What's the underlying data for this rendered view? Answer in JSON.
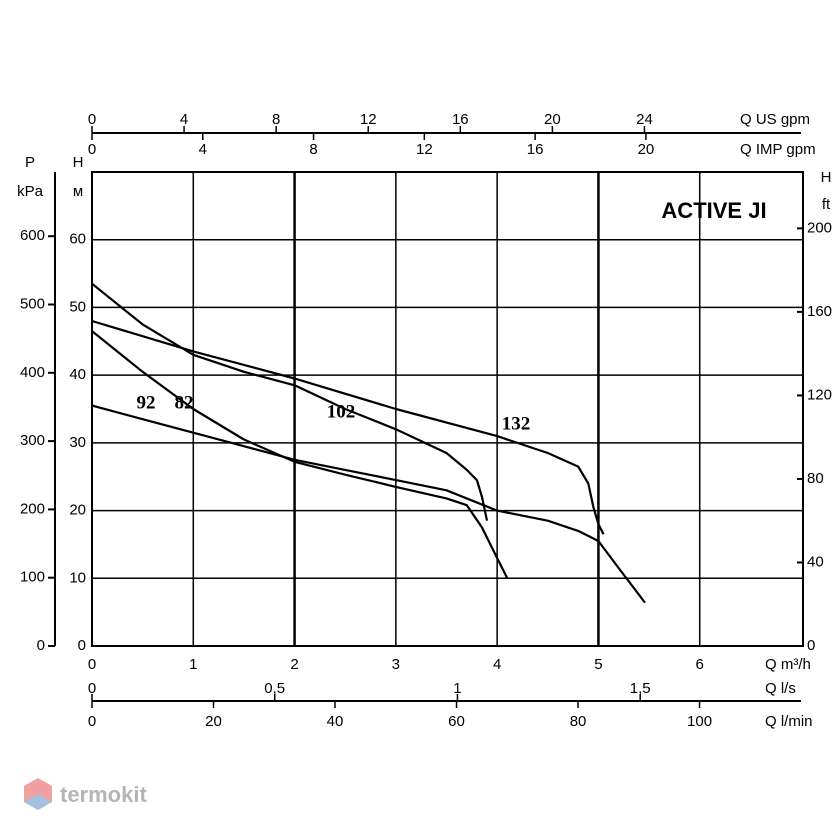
{
  "chart_data": {
    "type": "line",
    "title": "ACTIVE JI",
    "x_label": "Q m³/h",
    "xlim": [
      0,
      7
    ],
    "xticks": [
      0,
      1,
      2,
      3,
      4,
      5,
      6
    ],
    "y_label": [
      "H",
      "м"
    ],
    "ylim": [
      0,
      70
    ],
    "yticks": [
      0,
      10,
      20,
      30,
      40,
      50,
      60
    ],
    "grid": true,
    "p_axis": {
      "label": [
        "P",
        "kPa"
      ],
      "lim": [
        0,
        694
      ],
      "ticks": [
        0,
        100,
        200,
        300,
        400,
        500,
        600
      ]
    },
    "ft_axis": {
      "label": [
        "H",
        "ft"
      ],
      "lim": [
        0,
        227
      ],
      "ticks": [
        0,
        40,
        80,
        120,
        160,
        200
      ]
    },
    "us_gpm_axis": {
      "label": "Q US gpm",
      "lim": [
        0,
        30.8
      ],
      "ticks": [
        0,
        4,
        8,
        12,
        16,
        20,
        24
      ]
    },
    "imp_gpm_axis": {
      "label": "Q IMP gpm",
      "lim": [
        0,
        25.6
      ],
      "ticks": [
        0,
        4,
        8,
        12,
        16,
        20
      ]
    },
    "ls_axis": {
      "label": "Q l/s",
      "lim": [
        0,
        1.94
      ],
      "ticks": [
        0,
        {
          "value": 0.5,
          "label": "0,5"
        },
        1,
        {
          "value": 1.5,
          "label": "1,5"
        }
      ]
    },
    "lmin_axis": {
      "label": "Q l/min",
      "lim": [
        0,
        116.7
      ],
      "ticks": [
        0,
        20,
        40,
        60,
        80,
        100
      ]
    },
    "series": [
      {
        "name": "92",
        "color": "#000000",
        "x": [
          0,
          0.5,
          1,
          1.5,
          2,
          2.5,
          3,
          3.5,
          4,
          4.5,
          4.8,
          5,
          5.2,
          5.46
        ],
        "values": [
          35.5,
          33.5,
          31.5,
          29.5,
          27.5,
          26,
          24.5,
          23,
          20,
          18.5,
          17,
          15.5,
          11.5,
          6.4
        ]
      },
      {
        "name": "82",
        "color": "#000000",
        "x": [
          0,
          0.5,
          1,
          1.5,
          2,
          2.5,
          3,
          3.5,
          3.7,
          3.85,
          4,
          4.1
        ],
        "values": [
          46.5,
          40.5,
          35,
          30.5,
          27.2,
          25.3,
          23.5,
          21.8,
          20.8,
          17.5,
          13,
          10
        ]
      },
      {
        "name": "102",
        "color": "#000000",
        "x": [
          0,
          0.5,
          1,
          1.5,
          2,
          2.5,
          3,
          3.5,
          3.7,
          3.8,
          3.85,
          3.9
        ],
        "values": [
          53.5,
          47.5,
          43,
          40.5,
          38.5,
          35,
          32,
          28.5,
          26,
          24.5,
          22,
          18.5
        ]
      },
      {
        "name": "132",
        "color": "#000000",
        "x": [
          0,
          1,
          2,
          3,
          4,
          4.5,
          4.8,
          4.9,
          4.95,
          5,
          5.05
        ],
        "values": [
          48,
          43.5,
          39.5,
          35,
          31,
          28.5,
          26.5,
          24,
          20.5,
          18,
          16.5
        ]
      }
    ]
  },
  "watermark": "termokit"
}
